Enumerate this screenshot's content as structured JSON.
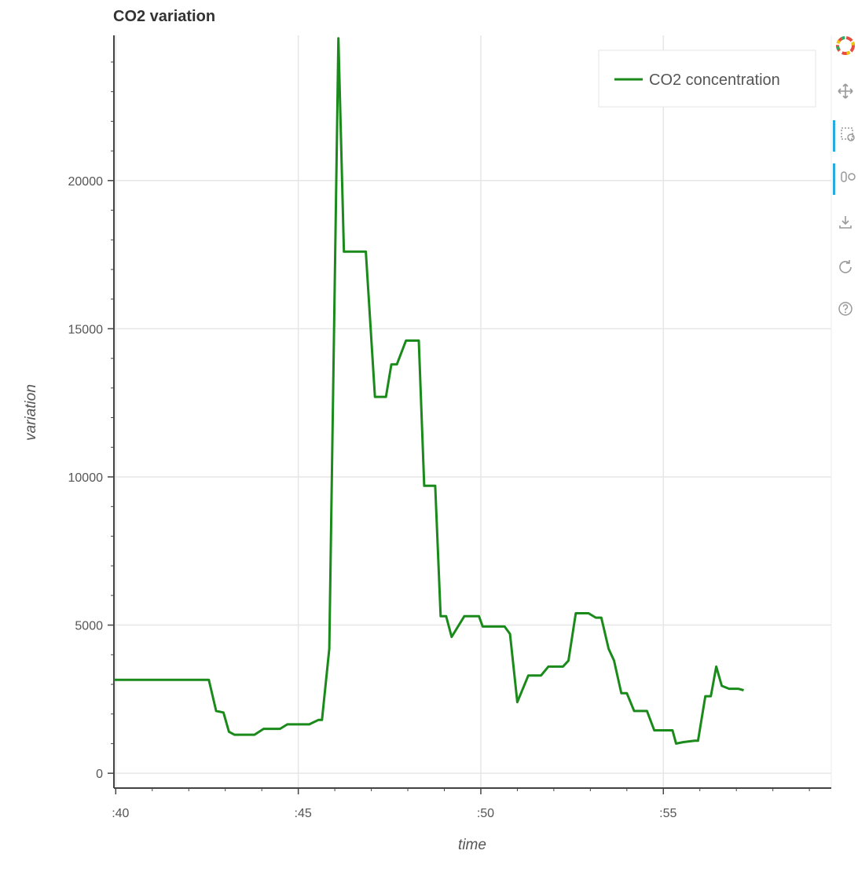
{
  "colors": {
    "line": "#1a8a1a",
    "grid": "#e6e6e6",
    "axis": "#444444",
    "active_tool": "#26aae1"
  },
  "toolbar": {
    "tools": [
      {
        "name": "bokeh-logo-icon",
        "active": false
      },
      {
        "name": "pan-icon",
        "active": false
      },
      {
        "name": "box-zoom-icon",
        "active": true
      },
      {
        "name": "wheel-zoom-icon",
        "active": true
      },
      {
        "name": "save-icon",
        "active": false
      },
      {
        "name": "reset-icon",
        "active": false
      },
      {
        "name": "help-icon",
        "active": false
      }
    ]
  },
  "chart_data": {
    "type": "line",
    "title": "CO2 variation",
    "xlabel": "time",
    "ylabel": "variation",
    "x_tick_labels": [
      ":40",
      ":45",
      ":50",
      ":55"
    ],
    "x_tick_values": [
      40,
      45,
      50,
      55
    ],
    "y_tick_labels": [
      "0",
      "5000",
      "10000",
      "15000",
      "20000"
    ],
    "y_tick_values": [
      0,
      5000,
      10000,
      15000,
      20000
    ],
    "xlim": [
      39.95,
      59.6
    ],
    "ylim": [
      -500,
      24900
    ],
    "grid": true,
    "legend_position": "top-right",
    "series": [
      {
        "name": "CO2 concentration",
        "x": [
          39.95,
          42.55,
          42.75,
          42.95,
          43.1,
          43.25,
          43.8,
          44.05,
          44.5,
          44.7,
          45.3,
          45.55,
          45.65,
          45.85,
          46.1,
          46.25,
          46.85,
          47.1,
          47.4,
          47.55,
          47.7,
          47.95,
          48.3,
          48.45,
          48.75,
          48.9,
          49.05,
          49.2,
          49.55,
          49.95,
          50.05,
          50.65,
          50.8,
          51.0,
          51.3,
          51.65,
          51.85,
          52.25,
          52.4,
          52.6,
          52.95,
          53.15,
          53.3,
          53.5,
          53.65,
          53.85,
          54.0,
          54.2,
          54.55,
          54.75,
          55.25,
          55.35,
          55.55,
          55.85,
          55.95,
          56.15,
          56.3,
          56.45,
          56.6,
          56.8,
          57.05,
          57.2
        ],
        "values": [
          3150,
          3150,
          2100,
          2050,
          1400,
          1300,
          1300,
          1500,
          1500,
          1650,
          1650,
          1800,
          1800,
          4200,
          24800,
          17600,
          17600,
          12700,
          12700,
          13800,
          13800,
          14600,
          14600,
          9700,
          9700,
          5300,
          5300,
          4600,
          5300,
          5300,
          4950,
          4950,
          4700,
          2400,
          3300,
          3300,
          3600,
          3600,
          3800,
          5400,
          5400,
          5250,
          5250,
          4200,
          3800,
          2700,
          2700,
          2100,
          2100,
          1450,
          1450,
          1000,
          1050,
          1100,
          1100,
          2600,
          2600,
          3600,
          2950,
          2850,
          2850,
          2800
        ]
      }
    ]
  }
}
